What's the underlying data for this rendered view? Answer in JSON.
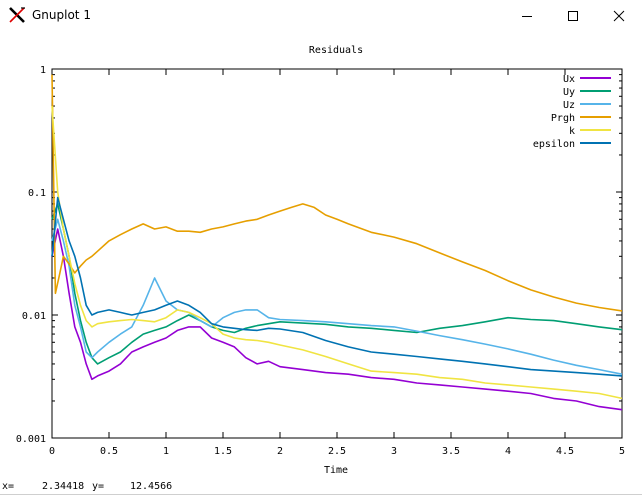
{
  "window": {
    "title": "Gnuplot 1",
    "app_icon": "x-logo-icon",
    "buttons": [
      "minimize-icon",
      "maximize-icon",
      "close-icon"
    ]
  },
  "status": {
    "x_label": "x=",
    "x_value": "2.34418",
    "y_label": "y=",
    "y_value": "12.4566"
  },
  "chart_data": {
    "type": "line",
    "title": "Residuals",
    "xlabel": "Time",
    "ylabel": "",
    "xlim": [
      0,
      5
    ],
    "ylim": [
      0.001,
      1
    ],
    "yscale": "log",
    "grid": false,
    "legend_position": "top-right",
    "xticks": [
      "0",
      "0.5",
      "1",
      "1.5",
      "2",
      "2.5",
      "3",
      "3.5",
      "4",
      "4.5",
      "5"
    ],
    "xtick_values": [
      0,
      0.5,
      1,
      1.5,
      2,
      2.5,
      3,
      3.5,
      4,
      4.5,
      5
    ],
    "yticks": [
      "1",
      "0.1",
      "0.01",
      "0.001"
    ],
    "ytick_values": [
      1,
      0.1,
      0.01,
      0.001
    ],
    "series": [
      {
        "name": "Ux",
        "color": "#9400d3",
        "x": [
          0,
          0.05,
          0.1,
          0.15,
          0.2,
          0.25,
          0.3,
          0.35,
          0.4,
          0.5,
          0.6,
          0.7,
          0.8,
          0.9,
          1.0,
          1.1,
          1.2,
          1.3,
          1.4,
          1.5,
          1.6,
          1.7,
          1.8,
          1.9,
          2.0,
          2.2,
          2.4,
          2.6,
          2.8,
          3.0,
          3.2,
          3.4,
          3.6,
          3.8,
          4.0,
          4.2,
          4.4,
          4.6,
          4.8,
          5.0
        ],
        "y": [
          0.03,
          0.05,
          0.03,
          0.015,
          0.008,
          0.006,
          0.004,
          0.003,
          0.0032,
          0.0035,
          0.004,
          0.005,
          0.0055,
          0.006,
          0.0065,
          0.0075,
          0.008,
          0.008,
          0.0065,
          0.006,
          0.0055,
          0.0045,
          0.004,
          0.0042,
          0.0038,
          0.0036,
          0.0034,
          0.0033,
          0.0031,
          0.003,
          0.0028,
          0.0027,
          0.0026,
          0.0025,
          0.0024,
          0.0023,
          0.0021,
          0.002,
          0.0018,
          0.0017
        ]
      },
      {
        "name": "Uy",
        "color": "#009e73",
        "x": [
          0,
          0.05,
          0.1,
          0.15,
          0.2,
          0.25,
          0.3,
          0.35,
          0.4,
          0.5,
          0.6,
          0.7,
          0.8,
          0.9,
          1.0,
          1.1,
          1.2,
          1.3,
          1.4,
          1.5,
          1.6,
          1.7,
          1.8,
          1.9,
          2.0,
          2.2,
          2.4,
          2.6,
          2.8,
          3.0,
          3.2,
          3.4,
          3.6,
          3.8,
          4.0,
          4.2,
          4.4,
          4.6,
          4.8,
          5.0
        ],
        "y": [
          0.06,
          0.08,
          0.05,
          0.03,
          0.015,
          0.009,
          0.006,
          0.0045,
          0.004,
          0.0045,
          0.005,
          0.006,
          0.007,
          0.0075,
          0.008,
          0.009,
          0.01,
          0.009,
          0.008,
          0.0075,
          0.0072,
          0.0078,
          0.0082,
          0.0085,
          0.0088,
          0.0086,
          0.0084,
          0.008,
          0.0078,
          0.0075,
          0.0072,
          0.0078,
          0.0082,
          0.0088,
          0.0095,
          0.0092,
          0.009,
          0.0085,
          0.008,
          0.0076
        ]
      },
      {
        "name": "Uz",
        "color": "#56b4e9",
        "x": [
          0,
          0.05,
          0.1,
          0.15,
          0.2,
          0.25,
          0.3,
          0.35,
          0.4,
          0.5,
          0.6,
          0.7,
          0.8,
          0.9,
          1.0,
          1.1,
          1.2,
          1.3,
          1.4,
          1.5,
          1.6,
          1.7,
          1.8,
          1.9,
          2.0,
          2.2,
          2.4,
          2.6,
          2.8,
          3.0,
          3.2,
          3.4,
          3.6,
          3.8,
          4.0,
          4.2,
          4.4,
          4.6,
          4.8,
          5.0
        ],
        "y": [
          0.04,
          0.06,
          0.04,
          0.025,
          0.012,
          0.008,
          0.005,
          0.0045,
          0.005,
          0.006,
          0.007,
          0.008,
          0.012,
          0.02,
          0.013,
          0.011,
          0.0105,
          0.009,
          0.008,
          0.0095,
          0.0105,
          0.011,
          0.011,
          0.0095,
          0.0092,
          0.009,
          0.0088,
          0.0085,
          0.0082,
          0.008,
          0.0074,
          0.0068,
          0.0063,
          0.0058,
          0.0053,
          0.0048,
          0.0043,
          0.0039,
          0.0036,
          0.0033
        ]
      },
      {
        "name": "Prgh",
        "color": "#e69f00",
        "x": [
          0,
          0.03,
          0.06,
          0.1,
          0.15,
          0.2,
          0.25,
          0.3,
          0.35,
          0.4,
          0.5,
          0.6,
          0.7,
          0.8,
          0.9,
          1.0,
          1.1,
          1.2,
          1.3,
          1.4,
          1.5,
          1.6,
          1.7,
          1.8,
          1.9,
          2.0,
          2.1,
          2.2,
          2.3,
          2.4,
          2.5,
          2.6,
          2.8,
          3.0,
          3.2,
          3.4,
          3.6,
          3.8,
          4.0,
          4.2,
          4.4,
          4.6,
          4.8,
          5.0
        ],
        "y": [
          0.9,
          0.015,
          0.02,
          0.03,
          0.026,
          0.022,
          0.025,
          0.028,
          0.03,
          0.033,
          0.04,
          0.045,
          0.05,
          0.055,
          0.05,
          0.052,
          0.048,
          0.048,
          0.047,
          0.05,
          0.052,
          0.055,
          0.058,
          0.06,
          0.065,
          0.07,
          0.075,
          0.08,
          0.075,
          0.065,
          0.06,
          0.055,
          0.047,
          0.043,
          0.038,
          0.032,
          0.027,
          0.023,
          0.019,
          0.016,
          0.014,
          0.0125,
          0.0115,
          0.0108
        ]
      },
      {
        "name": "k",
        "color": "#f0e442",
        "x": [
          0,
          0.05,
          0.1,
          0.15,
          0.2,
          0.25,
          0.3,
          0.35,
          0.4,
          0.5,
          0.6,
          0.7,
          0.8,
          0.9,
          1.0,
          1.1,
          1.2,
          1.3,
          1.4,
          1.5,
          1.6,
          1.7,
          1.8,
          1.9,
          2.0,
          2.2,
          2.4,
          2.6,
          2.8,
          3.0,
          3.2,
          3.4,
          3.6,
          3.8,
          4.0,
          4.2,
          4.4,
          4.6,
          4.8,
          5.0
        ],
        "y": [
          0.5,
          0.1,
          0.05,
          0.03,
          0.018,
          0.012,
          0.009,
          0.008,
          0.0085,
          0.0088,
          0.009,
          0.0092,
          0.009,
          0.0088,
          0.0095,
          0.011,
          0.0105,
          0.0095,
          0.0085,
          0.007,
          0.0065,
          0.0063,
          0.0062,
          0.006,
          0.0057,
          0.0052,
          0.0046,
          0.004,
          0.0035,
          0.0034,
          0.0033,
          0.0031,
          0.003,
          0.0028,
          0.0027,
          0.0026,
          0.0025,
          0.0024,
          0.0023,
          0.0021
        ]
      },
      {
        "name": "epsilon",
        "color": "#0072b2",
        "x": [
          0,
          0.05,
          0.1,
          0.15,
          0.2,
          0.25,
          0.3,
          0.35,
          0.4,
          0.5,
          0.6,
          0.7,
          0.8,
          0.9,
          1.0,
          1.1,
          1.2,
          1.3,
          1.4,
          1.5,
          1.6,
          1.7,
          1.8,
          1.9,
          2.0,
          2.2,
          2.4,
          2.6,
          2.8,
          3.0,
          3.2,
          3.4,
          3.6,
          3.8,
          4.0,
          4.2,
          4.4,
          4.6,
          4.8,
          5.0
        ],
        "y": [
          0.03,
          0.09,
          0.06,
          0.04,
          0.03,
          0.02,
          0.012,
          0.01,
          0.0105,
          0.011,
          0.0105,
          0.01,
          0.0105,
          0.011,
          0.012,
          0.013,
          0.012,
          0.0105,
          0.0085,
          0.008,
          0.0078,
          0.0076,
          0.0075,
          0.0078,
          0.0077,
          0.0072,
          0.0062,
          0.0055,
          0.005,
          0.0048,
          0.0046,
          0.0044,
          0.0042,
          0.004,
          0.0038,
          0.0036,
          0.0035,
          0.0034,
          0.0033,
          0.0032
        ]
      }
    ]
  }
}
